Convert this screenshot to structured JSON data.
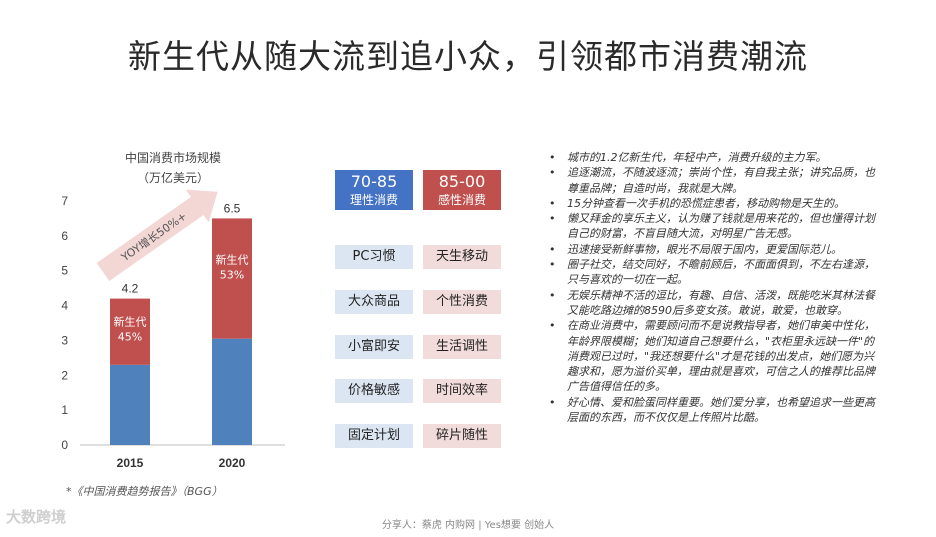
{
  "title": "新生代从随大流到追小众，引领都市消费潮流",
  "chart": {
    "title_line1": "中国消费市场规模",
    "title_line2": "（万亿美元）",
    "growth_label": "YOY增长50%+",
    "source": "*《中国消费趋势报告》（BGG）"
  },
  "chart_data": {
    "type": "bar",
    "stacked": true,
    "categories": [
      "2015",
      "2020"
    ],
    "totals": [
      4.2,
      6.5
    ],
    "ylim": [
      0,
      7
    ],
    "yticks": [
      "0",
      "1",
      "2",
      "3",
      "4",
      "5",
      "6",
      "7"
    ],
    "series": [
      {
        "values": [
          2.3,
          3.05
        ],
        "color": "#4f81bd"
      },
      {
        "values": [
          1.9,
          3.45
        ],
        "color": "#c0504d",
        "labels": [
          "新生代\n45%",
          "新生代\n53%"
        ]
      }
    ]
  },
  "compare": {
    "headers": [
      {
        "big": "70-85",
        "small": "理性消费",
        "color": "#4472c4"
      },
      {
        "big": "85-00",
        "small": "感性消费",
        "color": "#c0504d"
      }
    ],
    "rows": [
      {
        "left": "PC习惯",
        "right": "天生移动"
      },
      {
        "left": "大众商品",
        "right": "个性消费"
      },
      {
        "left": "小富即安",
        "right": "生活调性"
      },
      {
        "left": "价格敏感",
        "right": "时间效率"
      },
      {
        "left": "固定计划",
        "right": "碎片随性"
      }
    ]
  },
  "bullets": [
    "城市的1.2亿新生代，年轻中产，消费升级的主力军。",
    "追逐潮流，不随波逐流；崇尚个性，有自我主张；讲究品质，也尊重品牌；自造时尚，我就是大牌。",
    "15分钟查看一次手机的恐慌症患者，移动购物是天生的。",
    "懒又拜金的享乐主义，认为赚了钱就是用来花的，但也懂得计划自己的财富，不盲目随大流，对明星广告无感。",
    "迅速接受新鲜事物，眼光不局限于国内，更爱国际范儿。",
    "圈子社交，结交同好，不瞻前顾后，不面面俱到，不左右逢源，只与喜欢的一切在一起。",
    "无娱乐精神不活的逗比，有趣、自信、活泼，既能吃米其林法餐又能吃路边摊的8590后多变女孩。敢说，敢爱，也敢穿。",
    "在商业消费中，需要顾问而不是说教指导者，她们审美中性化，年龄界限模糊；她们知道自己想要什么，\"衣柜里永远缺一件\"的消费观已过时，\"我还想要什么\"才是花钱的出发点，她们愿为兴趣求和，愿为溢价买单，理由就是喜欢，可信之人的推荐比品牌广告值得信任的多。",
    "好心情、爱和脸蛋同样重要。她们爱分享，也希望追求一些更高层面的东西，而不仅仅是上传照片比酷。"
  ],
  "footer": "分享人：蔡虎 内购网 | Yes想要 创始人",
  "logo": "大数跨境"
}
